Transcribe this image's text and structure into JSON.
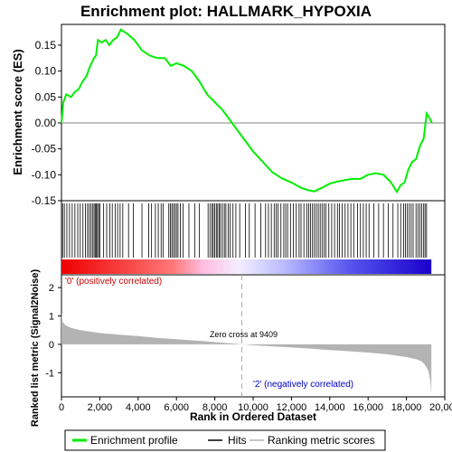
{
  "chart_data": {
    "type": "line",
    "title": "Enrichment plot: HALLMARK_HYPOXIA",
    "x_axis": {
      "label": "Rank in Ordered Dataset",
      "range": [
        0,
        20000
      ],
      "ticks": [
        0,
        2000,
        4000,
        6000,
        8000,
        10000,
        12000,
        14000,
        16000,
        18000,
        20000
      ],
      "tick_labels": [
        "0",
        "2,000",
        "4,000",
        "6,000",
        "8,000",
        "10,000",
        "12,000",
        "14,000",
        "16,000",
        "18,000",
        "20,000"
      ]
    },
    "es_panel": {
      "ylabel": "Enrichment score (ES)",
      "ylim": [
        -0.15,
        0.19
      ],
      "ticks": [
        -0.15,
        -0.1,
        -0.05,
        0.0,
        0.05,
        0.1,
        0.15
      ],
      "tick_labels": [
        "-0.15",
        "-0.10",
        "-0.05",
        "0.00",
        "0.05",
        "0.10",
        "0.15"
      ],
      "series": [
        {
          "name": "Enrichment profile",
          "color": "#00ee00",
          "points": [
            [
              0,
              0.0
            ],
            [
              100,
              0.04
            ],
            [
              250,
              0.055
            ],
            [
              500,
              0.05
            ],
            [
              700,
              0.06
            ],
            [
              900,
              0.065
            ],
            [
              1100,
              0.08
            ],
            [
              1300,
              0.09
            ],
            [
              1500,
              0.11
            ],
            [
              1700,
              0.125
            ],
            [
              1800,
              0.13
            ],
            [
              1900,
              0.16
            ],
            [
              2100,
              0.155
            ],
            [
              2300,
              0.16
            ],
            [
              2500,
              0.15
            ],
            [
              2700,
              0.16
            ],
            [
              2900,
              0.165
            ],
            [
              3100,
              0.18
            ],
            [
              3300,
              0.175
            ],
            [
              3500,
              0.17
            ],
            [
              3800,
              0.16
            ],
            [
              4200,
              0.14
            ],
            [
              4600,
              0.13
            ],
            [
              5000,
              0.125
            ],
            [
              5400,
              0.125
            ],
            [
              5700,
              0.11
            ],
            [
              6000,
              0.115
            ],
            [
              6400,
              0.11
            ],
            [
              6800,
              0.1
            ],
            [
              7200,
              0.08
            ],
            [
              7600,
              0.055
            ],
            [
              8000,
              0.04
            ],
            [
              8400,
              0.025
            ],
            [
              8800,
              0.005
            ],
            [
              9200,
              -0.015
            ],
            [
              9600,
              -0.035
            ],
            [
              10000,
              -0.055
            ],
            [
              10500,
              -0.075
            ],
            [
              11000,
              -0.095
            ],
            [
              11500,
              -0.107
            ],
            [
              12000,
              -0.115
            ],
            [
              12500,
              -0.125
            ],
            [
              12900,
              -0.13
            ],
            [
              13200,
              -0.132
            ],
            [
              13600,
              -0.125
            ],
            [
              14000,
              -0.117
            ],
            [
              14400,
              -0.113
            ],
            [
              14800,
              -0.11
            ],
            [
              15200,
              -0.108
            ],
            [
              15600,
              -0.108
            ],
            [
              16000,
              -0.1
            ],
            [
              16400,
              -0.097
            ],
            [
              16800,
              -0.1
            ],
            [
              17200,
              -0.115
            ],
            [
              17500,
              -0.133
            ],
            [
              17700,
              -0.12
            ],
            [
              17900,
              -0.115
            ],
            [
              18100,
              -0.09
            ],
            [
              18300,
              -0.075
            ],
            [
              18500,
              -0.07
            ],
            [
              18700,
              -0.045
            ],
            [
              18900,
              -0.03
            ],
            [
              19050,
              0.018
            ],
            [
              19200,
              0.01
            ],
            [
              19330,
              0.0
            ]
          ]
        }
      ]
    },
    "hits_panel": {
      "legend_name": "Hits",
      "hit_ranks": [
        60,
        150,
        280,
        420,
        560,
        700,
        850,
        980,
        1120,
        1250,
        1360,
        1450,
        1540,
        1620,
        1700,
        1760,
        1820,
        1880,
        1940,
        2000,
        2200,
        2360,
        2520,
        2650,
        2800,
        2930,
        3060,
        3200,
        3500,
        3750,
        4200,
        4550,
        4700,
        4900,
        5050,
        5200,
        5300,
        5600,
        5680,
        5760,
        5840,
        5920,
        6000,
        6080,
        6200,
        6350,
        6650,
        6950,
        7200,
        7650,
        7750,
        7850,
        7920,
        8000,
        8080,
        8150,
        8230,
        8300,
        8400,
        8500,
        8580,
        8700,
        8800,
        8950,
        9100,
        9300,
        9600,
        9800,
        10100,
        10400,
        10650,
        10800,
        10950,
        11100,
        11200,
        11300,
        11450,
        11600,
        11700,
        11800,
        11950,
        12100,
        12250,
        12400,
        12500,
        12650,
        12800,
        12900,
        13000,
        13100,
        13200,
        13300,
        13400,
        13500,
        13600,
        13700,
        13800,
        13950,
        14100,
        14250,
        14400,
        14500,
        14650,
        14800,
        14950,
        15100,
        15250,
        15450,
        15600,
        15750,
        15900,
        16050,
        16300,
        16550,
        16800,
        17050,
        17300,
        17550,
        17700,
        17850,
        17950,
        18050,
        18150,
        18250,
        18350,
        18500,
        18600,
        18700,
        18800,
        18900,
        18970,
        19050
      ]
    },
    "metric_panel": {
      "ylabel": "Ranked list metric (Signal2Noise)",
      "ylim": [
        -1.85,
        2.45
      ],
      "ticks": [
        -1,
        0,
        1,
        2
      ],
      "tick_labels": [
        "-1",
        "0",
        "1",
        "2"
      ],
      "legend_name": "Ranking metric scores",
      "fill_color": "#b3b3b3",
      "curve": [
        [
          0,
          1.1
        ],
        [
          50,
          0.8
        ],
        [
          200,
          0.68
        ],
        [
          500,
          0.58
        ],
        [
          1000,
          0.5
        ],
        [
          2000,
          0.4
        ],
        [
          3000,
          0.34
        ],
        [
          4000,
          0.29
        ],
        [
          5000,
          0.23
        ],
        [
          6000,
          0.18
        ],
        [
          7000,
          0.13
        ],
        [
          8000,
          0.08
        ],
        [
          9000,
          0.03
        ],
        [
          9409,
          0.0
        ],
        [
          10000,
          -0.03
        ],
        [
          11000,
          -0.07
        ],
        [
          12000,
          -0.11
        ],
        [
          13000,
          -0.15
        ],
        [
          14000,
          -0.2
        ],
        [
          15000,
          -0.24
        ],
        [
          16000,
          -0.29
        ],
        [
          17000,
          -0.35
        ],
        [
          17500,
          -0.4
        ],
        [
          18000,
          -0.45
        ],
        [
          18500,
          -0.52
        ],
        [
          18800,
          -0.6
        ],
        [
          19000,
          -0.75
        ],
        [
          19150,
          -0.95
        ],
        [
          19250,
          -1.3
        ],
        [
          19300,
          -1.75
        ]
      ],
      "zero_cross": 9409,
      "zero_cross_label": "Zero cross at 9409",
      "pos_label": "'0' (positively correlated)",
      "neg_label": "'2' (negatively correlated)",
      "pos_label_color": "#cc0000",
      "neg_label_color": "#0000cc"
    },
    "legend": {
      "position": "bottom",
      "items": [
        {
          "name": "Enrichment profile",
          "color": "#00ee00"
        },
        {
          "name": "Hits",
          "color": "#000000"
        },
        {
          "name": "Ranking metric scores",
          "color": "#b3b3b3"
        }
      ]
    }
  }
}
